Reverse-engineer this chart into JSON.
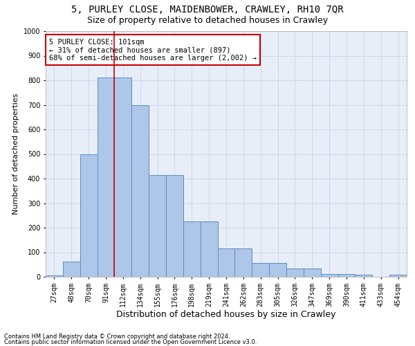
{
  "title": "5, PURLEY CLOSE, MAIDENBOWER, CRAWLEY, RH10 7QR",
  "subtitle": "Size of property relative to detached houses in Crawley",
  "xlabel": "Distribution of detached houses by size in Crawley",
  "ylabel": "Number of detached properties",
  "categories": [
    "27sqm",
    "48sqm",
    "70sqm",
    "91sqm",
    "112sqm",
    "134sqm",
    "155sqm",
    "176sqm",
    "198sqm",
    "219sqm",
    "241sqm",
    "262sqm",
    "283sqm",
    "305sqm",
    "326sqm",
    "347sqm",
    "369sqm",
    "390sqm",
    "411sqm",
    "433sqm",
    "454sqm"
  ],
  "values": [
    5,
    62,
    500,
    812,
    812,
    700,
    415,
    415,
    225,
    225,
    115,
    115,
    57,
    57,
    33,
    33,
    12,
    12,
    8,
    0,
    8
  ],
  "bar_color": "#aec6e8",
  "bar_edge_color": "#5b8cc8",
  "vline_color": "#cc0000",
  "vline_x": 3.5,
  "annotation_text": "5 PURLEY CLOSE: 101sqm\n← 31% of detached houses are smaller (897)\n68% of semi-detached houses are larger (2,002) →",
  "annotation_box_color": "#ffffff",
  "annotation_box_edge": "#cc0000",
  "ylim": [
    0,
    1000
  ],
  "yticks": [
    0,
    100,
    200,
    300,
    400,
    500,
    600,
    700,
    800,
    900,
    1000
  ],
  "footer1": "Contains HM Land Registry data © Crown copyright and database right 2024.",
  "footer2": "Contains public sector information licensed under the Open Government Licence v3.0.",
  "bg_color": "#ffffff",
  "plot_bg_color": "#e8eef8",
  "grid_color": "#c8d4e8",
  "title_fontsize": 10,
  "subtitle_fontsize": 9,
  "xlabel_fontsize": 9,
  "ylabel_fontsize": 8,
  "tick_fontsize": 7,
  "annot_fontsize": 7.5,
  "footer_fontsize": 6
}
